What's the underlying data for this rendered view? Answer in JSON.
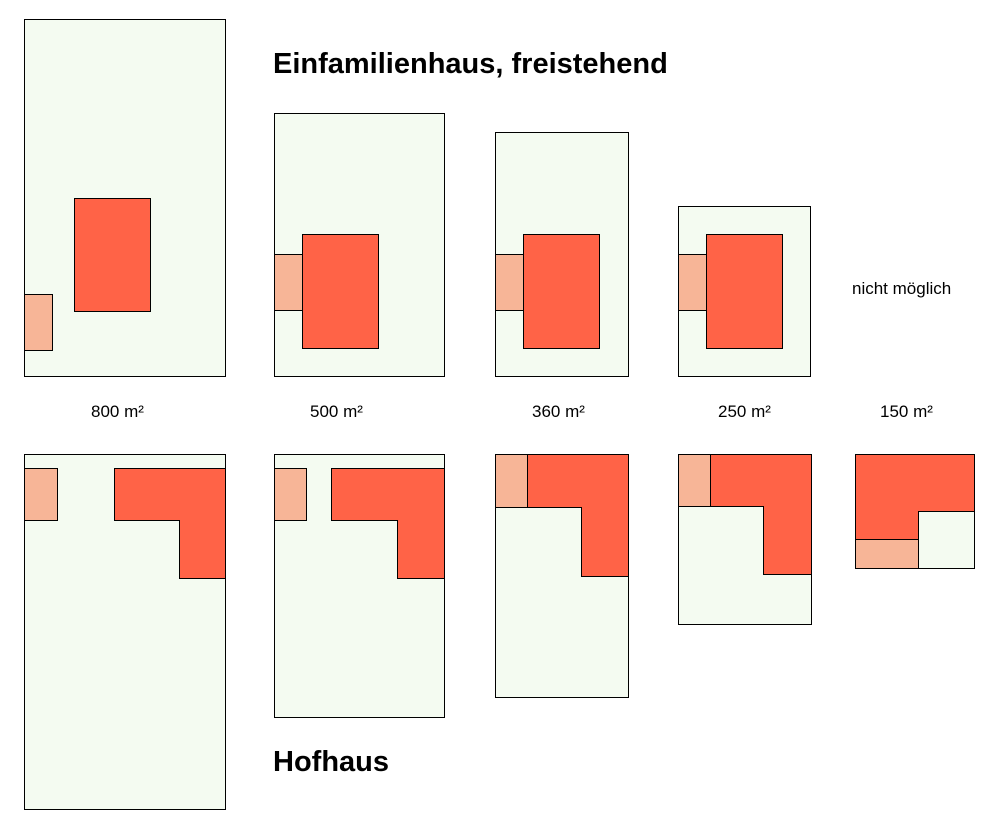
{
  "titles": {
    "detached": "Einfamilienhaus, freistehend",
    "courtyard": "Hofhaus"
  },
  "not_possible_label": "nicht möglich",
  "areas": [
    "800 m²",
    "500 m²",
    "360 m²",
    "250 m²",
    "150 m²"
  ],
  "colors": {
    "plot": "#f4fbf1",
    "house": "#ff6347",
    "garage": "#f7b597",
    "outline": "#000000"
  }
}
